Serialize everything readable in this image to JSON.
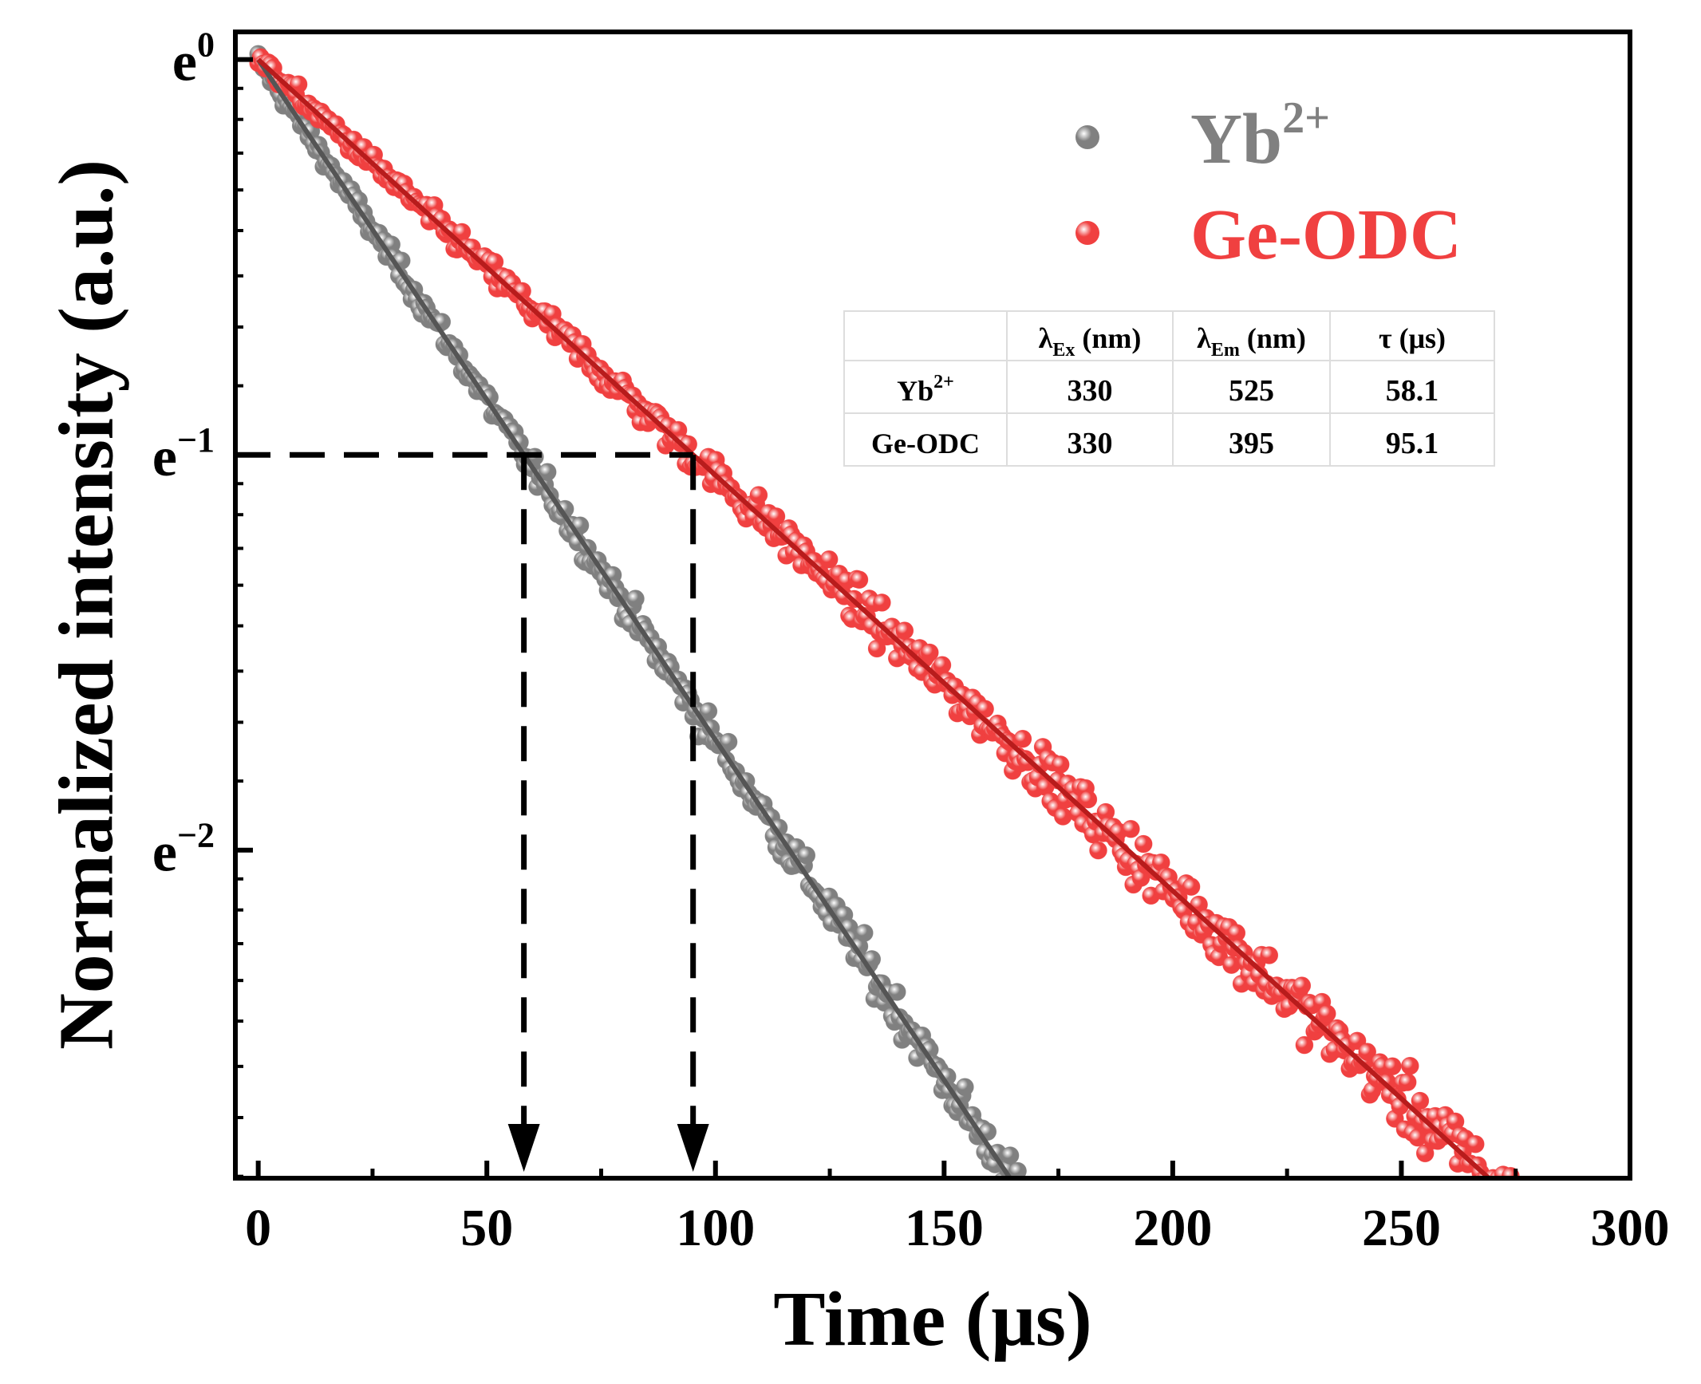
{
  "chart_data": {
    "type": "scatter",
    "xlabel": "Time (μs)",
    "ylabel": "Normalized intensity (a.u.)",
    "xlim": [
      -5,
      300
    ],
    "ylim": [
      -2.83,
      0.07
    ],
    "y_scale": "natural log (ln I)",
    "x_ticks": [
      "0",
      "50",
      "100",
      "150",
      "200",
      "250",
      "300"
    ],
    "y_ticks": [
      {
        "base": "e",
        "exp": "0",
        "value": 0
      },
      {
        "base": "e",
        "exp": "−1",
        "value": -1
      },
      {
        "base": "e",
        "exp": "−2",
        "value": -2
      }
    ],
    "grid": false,
    "legend": {
      "position": "top-right",
      "entries": [
        {
          "base": "Yb",
          "sup": "2+"
        },
        {
          "base": "Ge-ODC",
          "sup": ""
        }
      ]
    },
    "series": [
      {
        "label": {
          "base": "Yb",
          "sup": "2+"
        },
        "color": "#808080",
        "fit_color": "#555555",
        "tau_us": 58.1,
        "t_end_us": 185
      },
      {
        "label": {
          "base": "Ge-ODC",
          "sup": ""
        },
        "color": "#f04040",
        "fit_color": "#b81c1c",
        "tau_us": 95.1,
        "t_end_us": 294
      }
    ],
    "annotations": {
      "reference_level": -1,
      "arrows_at_us": [
        58.1,
        95.1
      ],
      "line_style": "dashed"
    },
    "table": {
      "headers": [
        {
          "base": "",
          "sub": "",
          "unit": ""
        },
        {
          "base": "λ",
          "sub": "Ex",
          "unit": " (nm)"
        },
        {
          "base": "λ",
          "sub": "Em",
          "unit": " (nm)"
        },
        {
          "base": "τ",
          "sub": "",
          "unit": " (μs)"
        }
      ],
      "rows": [
        {
          "label": {
            "base": "Yb",
            "sup": "2+"
          },
          "cells": [
            "330",
            "525",
            "58.1"
          ]
        },
        {
          "label": {
            "base": "Ge-ODC",
            "sup": ""
          },
          "cells": [
            "330",
            "395",
            "95.1"
          ]
        }
      ]
    }
  }
}
